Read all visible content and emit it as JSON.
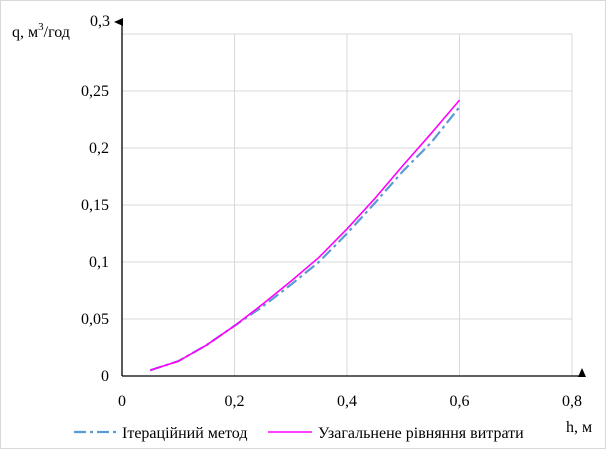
{
  "chart_data": {
    "type": "line",
    "title": "",
    "xlabel": "h, м",
    "ylabel_prefix": "q, м",
    "ylabel_sup": "3",
    "ylabel_suffix": "/год",
    "xlim": [
      0,
      0.8
    ],
    "ylim": [
      0,
      0.3
    ],
    "x_ticks": [
      0,
      0.2,
      0.4,
      0.6,
      0.8
    ],
    "x_tick_labels": [
      "0",
      "0,2",
      "0,4",
      "0,6",
      "0,8"
    ],
    "y_ticks": [
      0,
      0.05,
      0.1,
      0.15,
      0.2,
      0.25,
      0.3
    ],
    "y_tick_labels": [
      "0",
      "0,05",
      "0,1",
      "0,15",
      "0,2",
      "0,25",
      "0,3"
    ],
    "grid": true,
    "legend_position": "bottom",
    "series": [
      {
        "name": "Ітераційний метод",
        "color": "#5b9bd5",
        "style": "dash-dot",
        "x": [
          0.05,
          0.1,
          0.15,
          0.2,
          0.25,
          0.3,
          0.35,
          0.4,
          0.45,
          0.5,
          0.55,
          0.6
        ],
        "y": [
          0.005,
          0.013,
          0.027,
          0.044,
          0.061,
          0.08,
          0.1,
          0.125,
          0.152,
          0.18,
          0.205,
          0.236
        ]
      },
      {
        "name": "Узагальнене рівняння витрати",
        "color": "#ff00ff",
        "style": "solid",
        "x": [
          0.05,
          0.1,
          0.15,
          0.2,
          0.25,
          0.3,
          0.35,
          0.4,
          0.45,
          0.5,
          0.55,
          0.6
        ],
        "y": [
          0.005,
          0.013,
          0.027,
          0.044,
          0.063,
          0.083,
          0.104,
          0.129,
          0.156,
          0.185,
          0.213,
          0.242
        ]
      }
    ]
  }
}
